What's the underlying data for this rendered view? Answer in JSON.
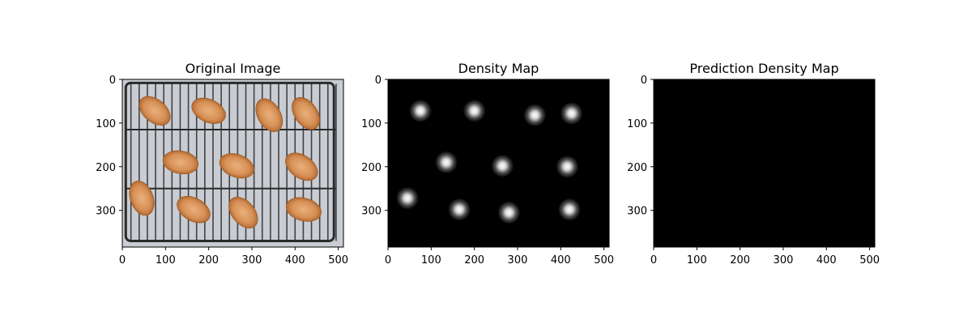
{
  "chart_data": [
    {
      "type": "image",
      "title": "Original Image",
      "image": {
        "description_name": "chicken-wings-on-wire-rack",
        "background_color": "#c9ccd2",
        "rack_color": "#2a2a2a",
        "wing_colors": [
          "#d9945c",
          "#c97e45",
          "#e2a56f"
        ],
        "wing_centers": [
          [
            75,
            72
          ],
          [
            200,
            72
          ],
          [
            340,
            82
          ],
          [
            425,
            78
          ],
          [
            135,
            190
          ],
          [
            265,
            198
          ],
          [
            415,
            200
          ],
          [
            45,
            272
          ],
          [
            165,
            298
          ],
          [
            280,
            305
          ],
          [
            420,
            298
          ]
        ]
      },
      "xlim": [
        0,
        512
      ],
      "ylim": [
        384,
        0
      ],
      "xticks": [
        0,
        100,
        200,
        300,
        400,
        500
      ],
      "yticks": [
        0,
        100,
        200,
        300
      ]
    },
    {
      "type": "heatmap",
      "title": "Density Map",
      "background": "#000000",
      "points": [
        [
          75,
          72
        ],
        [
          200,
          72
        ],
        [
          340,
          82
        ],
        [
          425,
          78
        ],
        [
          135,
          190
        ],
        [
          265,
          198
        ],
        [
          415,
          200
        ],
        [
          45,
          272
        ],
        [
          165,
          298
        ],
        [
          280,
          305
        ],
        [
          420,
          298
        ]
      ],
      "xlim": [
        0,
        512
      ],
      "ylim": [
        384,
        0
      ],
      "xticks": [
        0,
        100,
        200,
        300,
        400,
        500
      ],
      "yticks": [
        0,
        100,
        200,
        300
      ]
    },
    {
      "type": "heatmap",
      "title": "Prediction Density Map",
      "background": "#000000",
      "points": [],
      "xlim": [
        0,
        512
      ],
      "ylim": [
        384,
        0
      ],
      "xticks": [
        0,
        100,
        200,
        300,
        400,
        500
      ],
      "yticks": [
        0,
        100,
        200,
        300
      ]
    }
  ]
}
